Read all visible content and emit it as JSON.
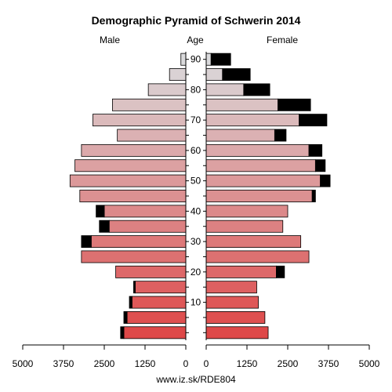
{
  "chart_data": {
    "type": "bar",
    "orientation": "horizontal",
    "layout": "population-pyramid",
    "title": "Demographic Pyramid of Schwerin 2014",
    "left_label": "Male",
    "center_label": "Age",
    "right_label": "Female",
    "footer": "www.iz.sk/RDE804",
    "age_groups": [
      "0-4",
      "5-9",
      "10-14",
      "15-19",
      "20-24",
      "25-29",
      "30-34",
      "35-39",
      "40-44",
      "45-49",
      "50-54",
      "55-59",
      "60-64",
      "65-69",
      "70-74",
      "75-79",
      "80-84",
      "85-89",
      "90+"
    ],
    "age_ticks": [
      "10",
      "20",
      "30",
      "40",
      "50",
      "60",
      "70",
      "80",
      "90"
    ],
    "x_ticks": [
      "5000",
      "3750",
      "2500",
      "1250",
      "0",
      "1250",
      "2500",
      "3750",
      "5000"
    ],
    "xlim": [
      0,
      5000
    ],
    "series": [
      {
        "name": "Male",
        "base": [
          1900,
          1800,
          1650,
          1550,
          2150,
          3200,
          2900,
          2350,
          2500,
          3250,
          3550,
          3400,
          3200,
          2100,
          2850,
          2250,
          1150,
          500,
          150
        ],
        "extra": [
          100,
          100,
          80,
          50,
          0,
          0,
          300,
          300,
          250,
          0,
          0,
          0,
          0,
          0,
          0,
          0,
          0,
          0,
          0
        ]
      },
      {
        "name": "Female",
        "base": [
          1900,
          1800,
          1600,
          1550,
          2150,
          3150,
          2900,
          2350,
          2500,
          3250,
          3500,
          3350,
          3150,
          2100,
          2850,
          2200,
          1150,
          500,
          150
        ],
        "extra": [
          0,
          0,
          0,
          0,
          250,
          0,
          0,
          0,
          0,
          100,
          300,
          300,
          400,
          350,
          850,
          1000,
          800,
          850,
          600
        ]
      }
    ],
    "colors": {
      "extra": "#000000",
      "outline": "#000000"
    },
    "grid": false
  }
}
